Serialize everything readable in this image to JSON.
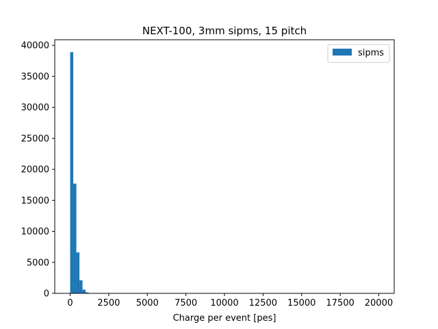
{
  "chart_data": {
    "type": "bar",
    "title": "NEXT-100, 3mm sipms, 15 pitch",
    "xlabel": "Charge per event [pes]",
    "ylabel": "",
    "xlim": [
      -1000,
      21000
    ],
    "ylim": [
      0,
      40900
    ],
    "xticks": [
      0,
      2500,
      5000,
      7500,
      10000,
      12500,
      15000,
      17500,
      20000
    ],
    "yticks": [
      0,
      5000,
      10000,
      15000,
      20000,
      25000,
      30000,
      35000,
      40000
    ],
    "bin_width": 200,
    "series": [
      {
        "name": "sipms",
        "color": "#1f77b4",
        "bins": [
          {
            "x0": 0,
            "x1": 200,
            "count": 38900
          },
          {
            "x0": 200,
            "x1": 400,
            "count": 17700
          },
          {
            "x0": 400,
            "x1": 600,
            "count": 6600
          },
          {
            "x0": 600,
            "x1": 800,
            "count": 2100
          },
          {
            "x0": 800,
            "x1": 1000,
            "count": 600
          },
          {
            "x0": 1000,
            "x1": 1200,
            "count": 150
          },
          {
            "x0": 1200,
            "x1": 1400,
            "count": 40
          },
          {
            "x0": 1400,
            "x1": 1600,
            "count": 10
          }
        ]
      }
    ],
    "legend": {
      "position": "top-right"
    },
    "grid": false
  }
}
